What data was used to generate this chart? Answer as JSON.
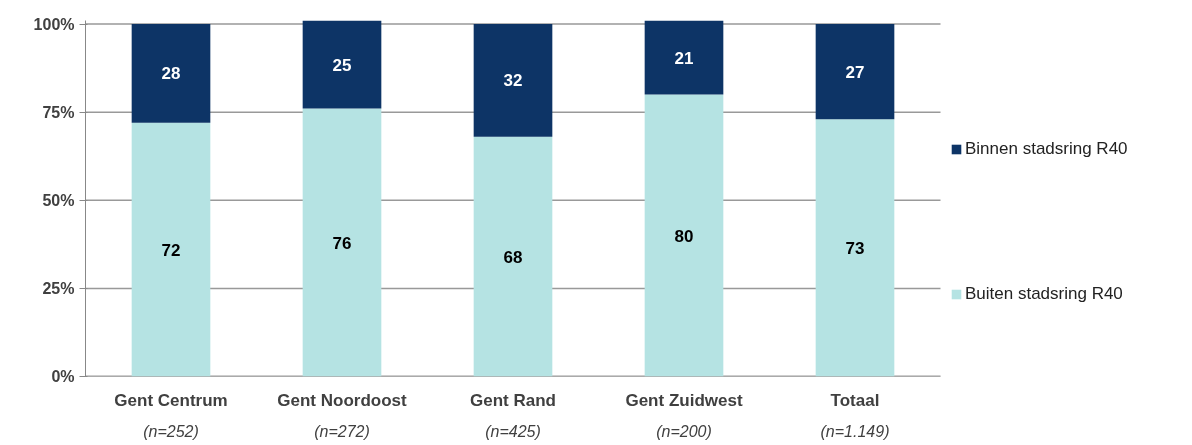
{
  "chart_data": {
    "type": "bar",
    "stacked": true,
    "categories": [
      "Gent Centrum\n(n=252)",
      "Gent Noordoost\n(n=272)",
      "Gent Rand\n(n=425)",
      "Gent Zuidwest\n(n=200)",
      "Totaal\n(n=1.149)"
    ],
    "series": [
      {
        "name": "Buiten stadsring R40",
        "color": "#b5e3e3",
        "values": [
          72,
          76,
          68,
          80,
          73
        ]
      },
      {
        "name": "Binnen stadsring R40",
        "color": "#0d3466",
        "values": [
          28,
          25,
          32,
          21,
          27
        ]
      }
    ],
    "ylim": [
      0,
      101
    ],
    "yticks": [
      {
        "value": 0,
        "label": "0%"
      },
      {
        "value": 25,
        "label": "25%"
      },
      {
        "value": 50,
        "label": "50%"
      },
      {
        "value": 75,
        "label": "75%"
      },
      {
        "value": 100,
        "label": "100%"
      }
    ],
    "grid": "y",
    "legend": "right",
    "data_labels": true
  }
}
